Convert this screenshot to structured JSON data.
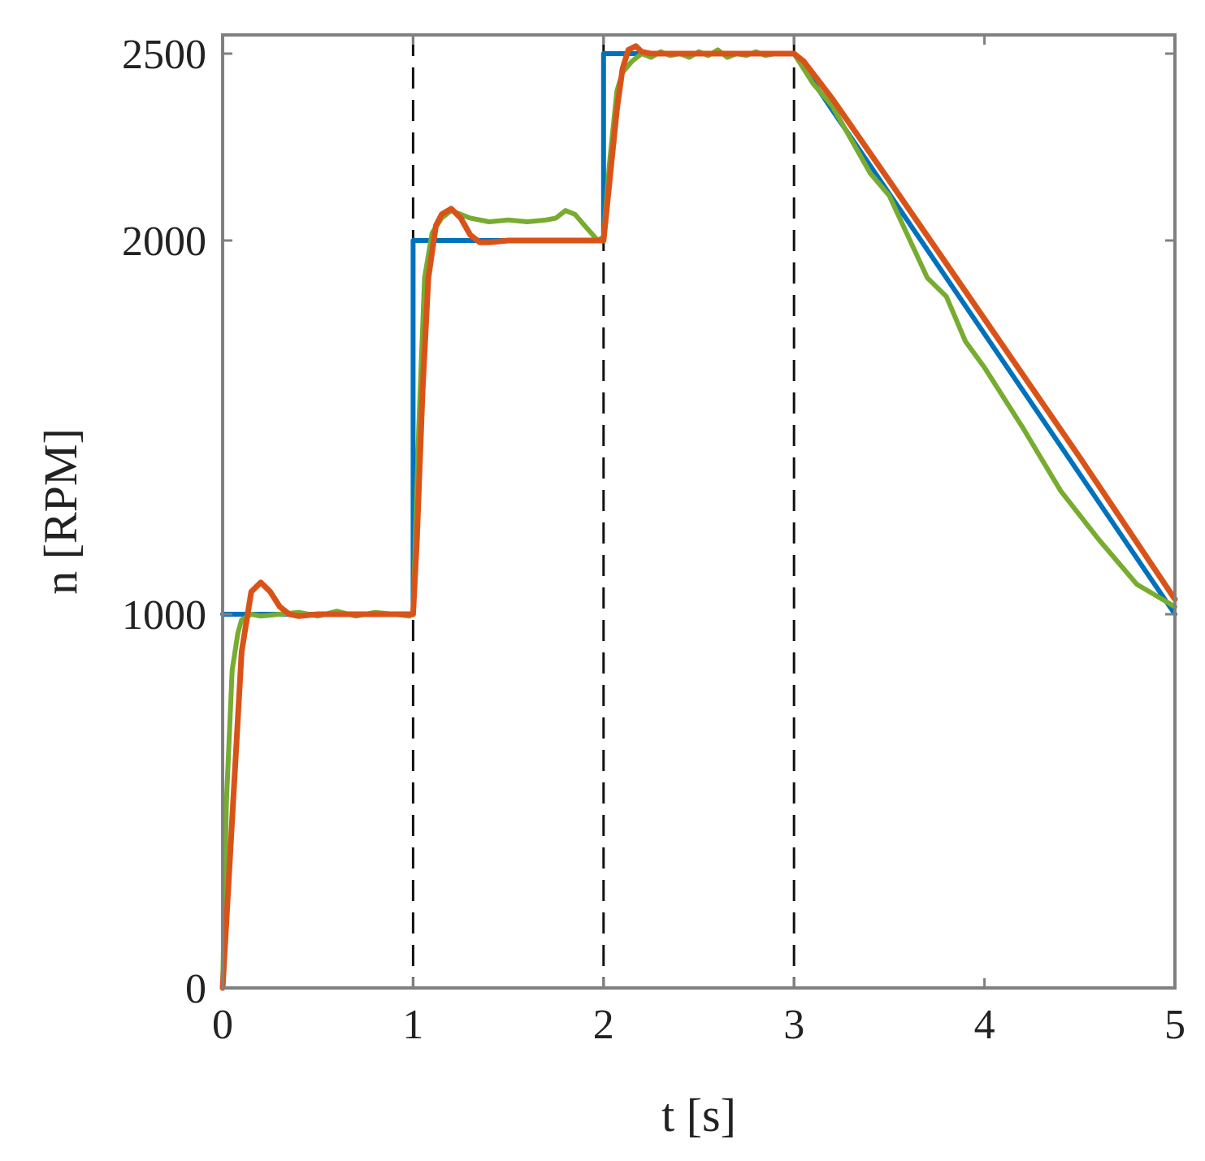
{
  "chart_data": {
    "type": "line",
    "title": "",
    "xlabel": "t [s]",
    "ylabel": "n [RPM]",
    "xlim": [
      0,
      5
    ],
    "ylim": [
      0,
      2550
    ],
    "xticks": [
      "0",
      "1",
      "2",
      "3",
      "4",
      "5"
    ],
    "yticks": [
      "0",
      "1000",
      "2000",
      "2500"
    ],
    "grid": false,
    "legend": "none",
    "vlines": [
      1,
      2,
      3
    ],
    "colors": {
      "axis": "#808080",
      "vline": "#111111"
    },
    "series": [
      {
        "color": "#0072BD",
        "x": [
          0,
          1,
          1,
          2,
          2,
          3,
          5
        ],
        "y": [
          1000,
          1000,
          2000,
          2000,
          2500,
          2500,
          1000
        ]
      },
      {
        "color": "#77AC30",
        "x": [
          0,
          0.02,
          0.05,
          0.08,
          0.1,
          0.15,
          0.2,
          0.3,
          0.4,
          0.5,
          0.6,
          0.7,
          0.8,
          0.9,
          0.98,
          1.0,
          1.03,
          1.06,
          1.1,
          1.15,
          1.2,
          1.3,
          1.4,
          1.5,
          1.6,
          1.7,
          1.75,
          1.8,
          1.85,
          1.9,
          1.97,
          2.0,
          2.03,
          2.07,
          2.1,
          2.15,
          2.2,
          2.25,
          2.3,
          2.35,
          2.4,
          2.45,
          2.5,
          2.55,
          2.6,
          2.65,
          2.7,
          2.75,
          2.8,
          2.85,
          2.9,
          2.95,
          3.0,
          3.1,
          3.2,
          3.4,
          3.5,
          3.7,
          3.8,
          3.9,
          4.0,
          4.2,
          4.4,
          4.6,
          4.8,
          5.0
        ],
        "y": [
          0,
          500,
          850,
          950,
          985,
          1000,
          995,
          1000,
          1005,
          995,
          1008,
          995,
          1005,
          1000,
          995,
          1000,
          1500,
          1900,
          2020,
          2060,
          2080,
          2060,
          2050,
          2055,
          2050,
          2055,
          2060,
          2080,
          2070,
          2040,
          2000,
          2010,
          2200,
          2400,
          2450,
          2480,
          2500,
          2490,
          2505,
          2495,
          2500,
          2490,
          2505,
          2495,
          2510,
          2490,
          2500,
          2495,
          2505,
          2495,
          2500,
          2500,
          2500,
          2420,
          2360,
          2180,
          2120,
          1900,
          1850,
          1730,
          1660,
          1500,
          1330,
          1200,
          1080,
          1020
        ]
      },
      {
        "color": "#D95319",
        "x": [
          0,
          0.05,
          0.1,
          0.15,
          0.2,
          0.25,
          0.3,
          0.35,
          0.4,
          0.5,
          0.6,
          0.8,
          1.0,
          1.02,
          1.05,
          1.08,
          1.12,
          1.15,
          1.2,
          1.25,
          1.3,
          1.35,
          1.4,
          1.5,
          1.7,
          2.0,
          2.03,
          2.07,
          2.1,
          2.13,
          2.17,
          2.2,
          2.25,
          2.3,
          2.4,
          2.5,
          2.7,
          3.0,
          3.05,
          3.2,
          3.5,
          4.0,
          4.5,
          5.0
        ],
        "y": [
          0,
          450,
          900,
          1060,
          1085,
          1060,
          1020,
          1000,
          995,
          1000,
          1000,
          1000,
          1000,
          1200,
          1600,
          1900,
          2040,
          2070,
          2085,
          2060,
          2015,
          1995,
          1995,
          2000,
          2000,
          2000,
          2150,
          2350,
          2460,
          2510,
          2520,
          2505,
          2500,
          2500,
          2500,
          2500,
          2500,
          2500,
          2480,
          2380,
          2160,
          1790,
          1420,
          1040
        ]
      }
    ]
  }
}
